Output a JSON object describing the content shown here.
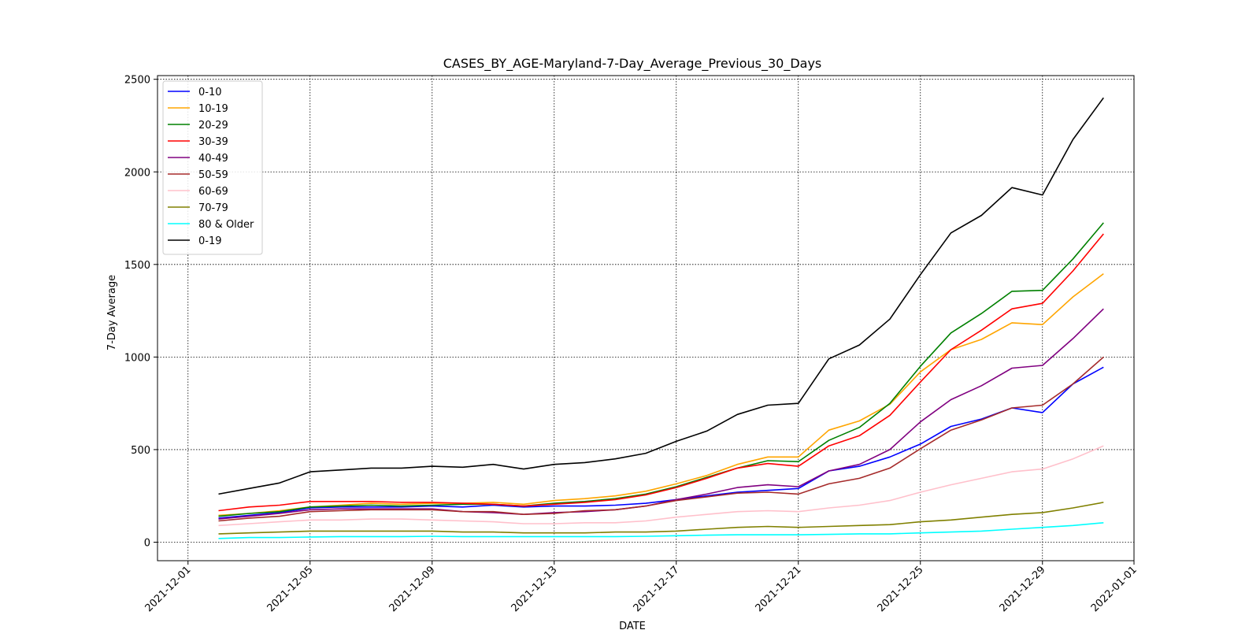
{
  "chart_data": {
    "type": "line",
    "title": "CASES_BY_AGE-Maryland-7-Day_Average_Previous_30_Days",
    "xlabel": "DATE",
    "ylabel": "7-Day Average",
    "xlim": [
      "2021-11-30",
      "2022-01-01"
    ],
    "ylim": [
      -100,
      2520
    ],
    "grid": true,
    "legend_position": "top-left",
    "x_ticks": [
      "2021-12-01",
      "2021-12-05",
      "2021-12-09",
      "2021-12-13",
      "2021-12-17",
      "2021-12-21",
      "2021-12-25",
      "2021-12-29",
      "2022-01-01"
    ],
    "y_ticks": [
      0,
      500,
      1000,
      1500,
      2000,
      2500
    ],
    "x": [
      "2021-12-02",
      "2021-12-03",
      "2021-12-04",
      "2021-12-05",
      "2021-12-06",
      "2021-12-07",
      "2021-12-08",
      "2021-12-09",
      "2021-12-10",
      "2021-12-11",
      "2021-12-12",
      "2021-12-13",
      "2021-12-14",
      "2021-12-15",
      "2021-12-16",
      "2021-12-17",
      "2021-12-18",
      "2021-12-19",
      "2021-12-20",
      "2021-12-21",
      "2021-12-22",
      "2021-12-23",
      "2021-12-24",
      "2021-12-25",
      "2021-12-26",
      "2021-12-27",
      "2021-12-28",
      "2021-12-29",
      "2021-12-30",
      "2021-12-31"
    ],
    "series": [
      {
        "name": "0-10",
        "color": "#0000ff",
        "values": [
          130,
          145,
          160,
          185,
          190,
          190,
          190,
          195,
          190,
          200,
          190,
          195,
          195,
          200,
          210,
          230,
          250,
          270,
          280,
          290,
          385,
          410,
          460,
          530,
          625,
          665,
          725,
          700,
          855,
          945
        ]
      },
      {
        "name": "10-19",
        "color": "#ffa500",
        "values": [
          145,
          155,
          170,
          190,
          200,
          210,
          205,
          210,
          210,
          215,
          205,
          225,
          235,
          250,
          275,
          315,
          360,
          420,
          460,
          460,
          605,
          655,
          745,
          920,
          1040,
          1095,
          1185,
          1175,
          1325,
          1450
        ]
      },
      {
        "name": "20-29",
        "color": "#008000",
        "values": [
          140,
          155,
          165,
          190,
          195,
          200,
          195,
          200,
          205,
          205,
          195,
          210,
          220,
          235,
          260,
          300,
          350,
          400,
          440,
          435,
          550,
          620,
          750,
          950,
          1130,
          1235,
          1355,
          1360,
          1530,
          1725
        ]
      },
      {
        "name": "30-39",
        "color": "#ff0000",
        "values": [
          170,
          190,
          200,
          220,
          220,
          220,
          215,
          215,
          210,
          205,
          195,
          205,
          215,
          230,
          255,
          295,
          345,
          400,
          425,
          410,
          520,
          575,
          685,
          865,
          1040,
          1145,
          1260,
          1290,
          1465,
          1665
        ]
      },
      {
        "name": "40-49",
        "color": "#800080",
        "values": [
          125,
          140,
          155,
          175,
          180,
          180,
          180,
          180,
          165,
          160,
          150,
          160,
          165,
          175,
          195,
          230,
          260,
          295,
          310,
          300,
          385,
          420,
          500,
          650,
          770,
          845,
          940,
          955,
          1100,
          1260
        ]
      },
      {
        "name": "50-59",
        "color": "#a52a2a",
        "values": [
          115,
          130,
          140,
          165,
          170,
          175,
          175,
          175,
          165,
          165,
          150,
          155,
          170,
          175,
          195,
          225,
          245,
          265,
          270,
          260,
          315,
          345,
          400,
          505,
          605,
          660,
          725,
          740,
          855,
          1000
        ]
      },
      {
        "name": "60-69",
        "color": "#ffc0cb",
        "values": [
          90,
          100,
          110,
          120,
          120,
          125,
          125,
          120,
          115,
          110,
          100,
          100,
          105,
          105,
          115,
          135,
          150,
          165,
          170,
          165,
          185,
          200,
          225,
          270,
          310,
          345,
          380,
          395,
          450,
          520
        ]
      },
      {
        "name": "70-79",
        "color": "#808000",
        "values": [
          45,
          50,
          55,
          60,
          60,
          60,
          60,
          60,
          55,
          55,
          50,
          50,
          50,
          55,
          55,
          60,
          70,
          80,
          85,
          80,
          85,
          90,
          95,
          110,
          120,
          135,
          150,
          160,
          185,
          215
        ]
      },
      {
        "name": "80 & Older",
        "color": "#00ffff",
        "values": [
          20,
          25,
          25,
          28,
          30,
          30,
          30,
          32,
          30,
          30,
          30,
          30,
          30,
          30,
          32,
          35,
          38,
          40,
          40,
          40,
          42,
          45,
          45,
          50,
          55,
          60,
          70,
          80,
          90,
          105
        ]
      },
      {
        "name": "0-19",
        "color": "#000000",
        "values": [
          260,
          290,
          320,
          380,
          390,
          400,
          400,
          410,
          405,
          420,
          395,
          420,
          430,
          450,
          480,
          545,
          600,
          690,
          740,
          750,
          990,
          1065,
          1205,
          1445,
          1670,
          1765,
          1915,
          1875,
          2175,
          2400
        ]
      }
    ]
  }
}
